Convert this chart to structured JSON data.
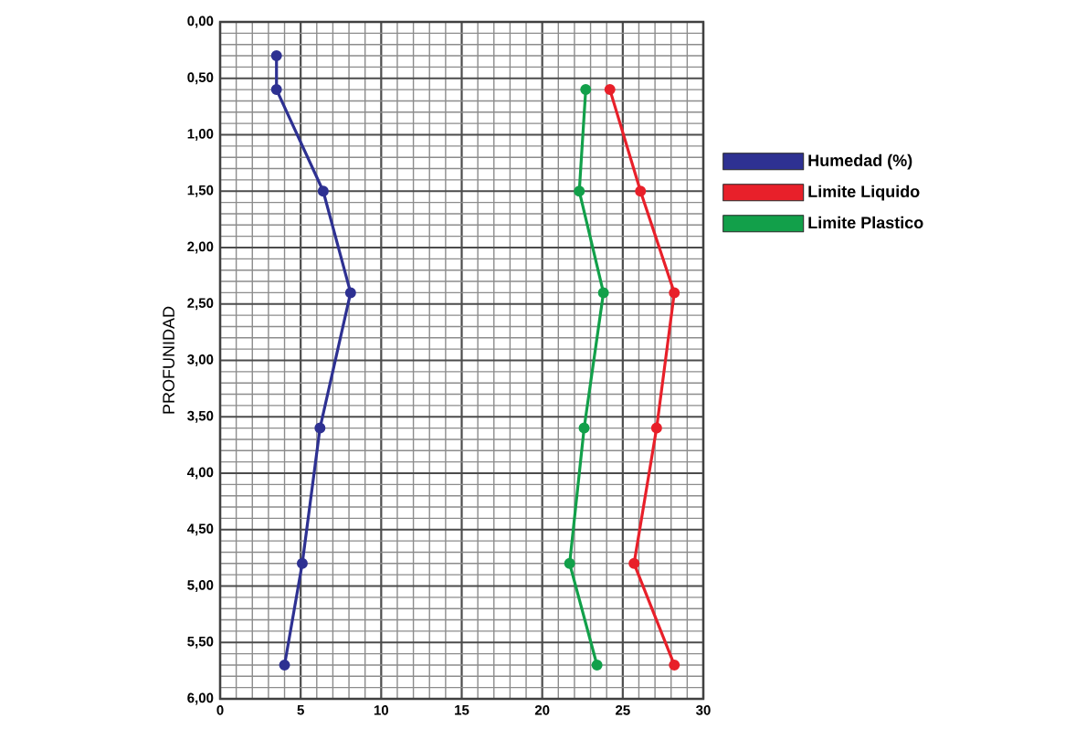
{
  "chart_data": {
    "type": "line",
    "ylabel": "PROFUNIDAD",
    "xlim": [
      0,
      30
    ],
    "xticks": [
      0,
      5,
      10,
      15,
      20,
      25,
      30
    ],
    "ylim": [
      6,
      0
    ],
    "yticks": [
      {
        "value": 0,
        "label": "0,00"
      },
      {
        "value": 0.5,
        "label": "0,50"
      },
      {
        "value": 1,
        "label": "1,00"
      },
      {
        "value": 1.5,
        "label": "1,50"
      },
      {
        "value": 2,
        "label": "2,00"
      },
      {
        "value": 2.5,
        "label": "2,50"
      },
      {
        "value": 3,
        "label": "3,00"
      },
      {
        "value": 3.5,
        "label": "3,50"
      },
      {
        "value": 4,
        "label": "4,00"
      },
      {
        "value": 4.5,
        "label": "4,50"
      },
      {
        "value": 5,
        "label": "5,00"
      },
      {
        "value": 5.5,
        "label": "5,50"
      },
      {
        "value": 6,
        "label": "6,00"
      }
    ],
    "grid": true,
    "legend": "right",
    "marker": "circle",
    "line_style": "solid",
    "series": [
      {
        "name": "Humedad (%)",
        "color": "#2e3192",
        "x": [
          3.5,
          3.5,
          6.4,
          8.1,
          6.2,
          5.1,
          4.0
        ],
        "values": [
          0.3,
          0.6,
          1.5,
          2.4,
          3.6,
          4.8,
          5.7
        ]
      },
      {
        "name": "Limite Liquido",
        "color": "#e8202a",
        "x": [
          24.2,
          26.1,
          28.2,
          27.1,
          25.7,
          28.2
        ],
        "values": [
          0.6,
          1.5,
          2.4,
          3.6,
          4.8,
          5.7
        ]
      },
      {
        "name": "Limite Plastico",
        "color": "#12a04a",
        "x": [
          22.7,
          22.3,
          23.8,
          22.6,
          21.7,
          23.4
        ],
        "values": [
          0.6,
          1.5,
          2.4,
          3.6,
          4.8,
          5.7
        ]
      }
    ]
  }
}
